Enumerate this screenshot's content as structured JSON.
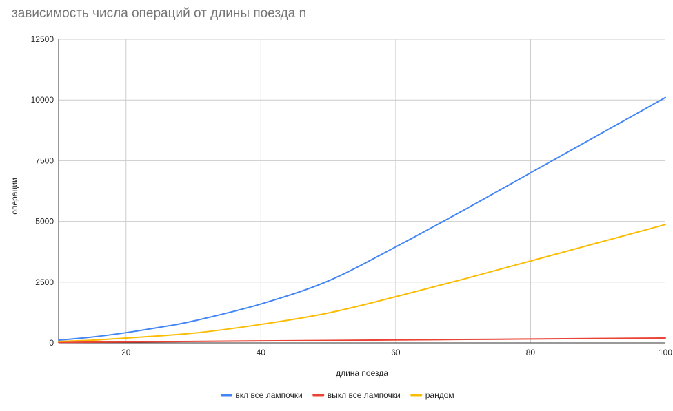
{
  "chart_data": {
    "type": "line",
    "title": "зависимость числа операций от длины поезда n",
    "xlabel": "длина поезда",
    "ylabel": "операции",
    "xlim": [
      10,
      100
    ],
    "ylim": [
      0,
      12500
    ],
    "x_ticks": [
      20,
      40,
      60,
      80,
      100
    ],
    "y_ticks": [
      0,
      2500,
      5000,
      7500,
      10000,
      12500
    ],
    "grid": true,
    "legend_position": "bottom",
    "series": [
      {
        "name": "вкл все лампочки",
        "color": "#4285f4",
        "points": [
          [
            10,
            110
          ],
          [
            15,
            240
          ],
          [
            20,
            420
          ],
          [
            25,
            640
          ],
          [
            30,
            900
          ],
          [
            40,
            1600
          ],
          [
            50,
            2550
          ],
          [
            60,
            3950
          ],
          [
            70,
            5450
          ],
          [
            80,
            7000
          ],
          [
            90,
            8550
          ],
          [
            100,
            10100
          ]
        ]
      },
      {
        "name": "выкл все лампочки",
        "color": "#ea4335",
        "points": [
          [
            10,
            20
          ],
          [
            20,
            40
          ],
          [
            30,
            60
          ],
          [
            40,
            80
          ],
          [
            50,
            100
          ],
          [
            60,
            120
          ],
          [
            70,
            140
          ],
          [
            80,
            160
          ],
          [
            90,
            180
          ],
          [
            100,
            200
          ]
        ]
      },
      {
        "name": "рандом",
        "color": "#fbbc04",
        "points": [
          [
            10,
            60
          ],
          [
            15,
            110
          ],
          [
            20,
            200
          ],
          [
            30,
            400
          ],
          [
            40,
            760
          ],
          [
            50,
            1230
          ],
          [
            60,
            1900
          ],
          [
            70,
            2620
          ],
          [
            80,
            3370
          ],
          [
            90,
            4120
          ],
          [
            100,
            4870
          ]
        ]
      }
    ]
  }
}
